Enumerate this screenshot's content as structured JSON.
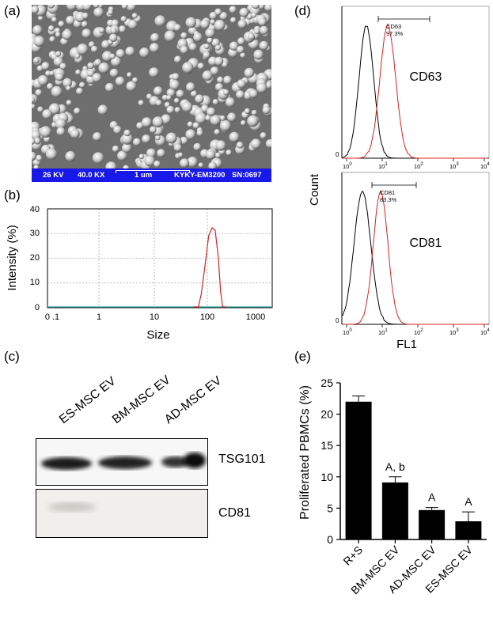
{
  "panel_labels": {
    "a": "(a)",
    "b": "(b)",
    "c": "(c)",
    "d": "(d)",
    "e": "(e)"
  },
  "sem": {
    "voltage": "26 KV",
    "magnification": "40.0 KX",
    "scale": "1 um",
    "instrument": "KYKY-EM3200",
    "serial": "SN:0697",
    "bar_color": "#1818e8"
  },
  "dls": {
    "ylabel": "Intensity (%)",
    "xlabel": "Size",
    "y_ticks": [
      "0",
      "10",
      "20",
      "30",
      "40"
    ],
    "x_ticks": [
      "0 .1",
      "1",
      "10",
      "100",
      "1000"
    ],
    "line_color": "#e02020"
  },
  "western": {
    "lanes": [
      "ES-MSC EV",
      "BM-MSC EV",
      "AD-MSC EV"
    ],
    "markers": [
      "TSG101",
      "CD81"
    ]
  },
  "flow": {
    "ylabel": "Count",
    "xlabel": "FL1",
    "top": {
      "marker": "CD63",
      "gate_label": "CD63",
      "gate_value": "97.3%"
    },
    "bottom": {
      "marker": "CD81",
      "gate_label": "CD81",
      "gate_value": "83.3%"
    },
    "x_tick_base": "10",
    "x_tick_exps": [
      "0",
      "1",
      "2",
      "3",
      "4"
    ],
    "y_zero": "0",
    "control_color": "#000000",
    "stain_color": "#e02020"
  },
  "chart_data": {
    "type": "bar",
    "categories": [
      "R+S",
      "BM-MSC EV",
      "AD-MSC EV",
      "ES-MSC EV"
    ],
    "values": [
      22.0,
      9.1,
      4.7,
      2.9
    ],
    "errors": [
      0.9,
      0.9,
      0.4,
      1.5
    ],
    "annotations": [
      "",
      "A, b",
      "A",
      "A"
    ],
    "ylabel": "Proliferated PBMCs (%)",
    "y_ticks": [
      "0",
      "5",
      "10",
      "15",
      "20",
      "25"
    ],
    "ylim": [
      0,
      25
    ]
  }
}
